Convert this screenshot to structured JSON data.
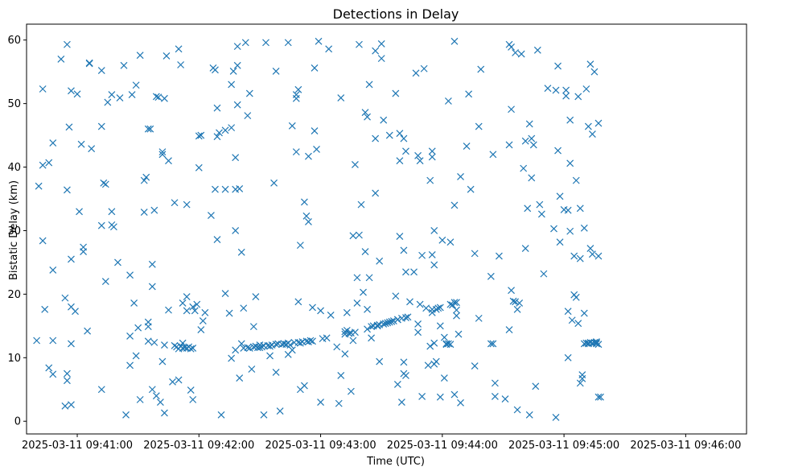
{
  "chart_data": {
    "type": "scatter",
    "title": "Detections in Delay",
    "xlabel": "Time (UTC)",
    "ylabel": "Bistatic Delay (km)",
    "marker": "x",
    "color": "#1f77b4",
    "xlim": [
      -25,
      330
    ],
    "ylim": [
      -2,
      62.5
    ],
    "x_unit": "seconds after 2025-03-11 09:41:00",
    "xticks": [
      {
        "value": 0,
        "label": "2025-03-11 09:41:00"
      },
      {
        "value": 60,
        "label": "2025-03-11 09:42:00"
      },
      {
        "value": 120,
        "label": "2025-03-11 09:43:00"
      },
      {
        "value": 180,
        "label": "2025-03-11 09:44:00"
      },
      {
        "value": 240,
        "label": "2025-03-11 09:45:00"
      },
      {
        "value": 300,
        "label": "2025-03-11 09:46:00"
      }
    ],
    "yticks": [
      {
        "value": 0,
        "label": "0"
      },
      {
        "value": 10,
        "label": "10"
      },
      {
        "value": 20,
        "label": "20"
      },
      {
        "value": 30,
        "label": "30"
      },
      {
        "value": 40,
        "label": "40"
      },
      {
        "value": 50,
        "label": "50"
      },
      {
        "value": 60,
        "label": "60"
      }
    ],
    "points": [
      [
        -20,
        12.7
      ],
      [
        -19,
        37.0
      ],
      [
        -17,
        52.3
      ],
      [
        -17,
        40.3
      ],
      [
        -16,
        17.6
      ],
      [
        -17,
        28.4
      ],
      [
        -14,
        40.7
      ],
      [
        -14,
        8.4
      ],
      [
        -12,
        43.8
      ],
      [
        -12,
        23.8
      ],
      [
        -12,
        12.7
      ],
      [
        -12,
        7.4
      ],
      [
        -8,
        57.0
      ],
      [
        -5,
        59.3
      ],
      [
        -5,
        36.4
      ],
      [
        -6,
        19.4
      ],
      [
        -6,
        2.4
      ],
      [
        -5,
        7.5
      ],
      [
        -5,
        6.4
      ],
      [
        -4,
        46.3
      ],
      [
        -3,
        52.0
      ],
      [
        -3,
        25.5
      ],
      [
        -3,
        18.0
      ],
      [
        -3,
        12.2
      ],
      [
        -3,
        2.6
      ],
      [
        -1,
        17.3
      ],
      [
        0,
        51.5
      ],
      [
        1,
        33.0
      ],
      [
        2,
        43.6
      ],
      [
        3,
        27.4
      ],
      [
        3,
        26.7
      ],
      [
        5,
        14.2
      ],
      [
        6,
        56.4
      ],
      [
        6,
        56.3
      ],
      [
        7,
        42.9
      ],
      [
        12,
        55.2
      ],
      [
        12,
        46.4
      ],
      [
        12,
        30.8
      ],
      [
        12,
        5.0
      ],
      [
        13,
        37.5
      ],
      [
        14,
        37.3
      ],
      [
        14,
        22.0
      ],
      [
        15,
        50.2
      ],
      [
        17,
        51.4
      ],
      [
        17,
        33.0
      ],
      [
        17,
        30.9
      ],
      [
        18,
        30.6
      ],
      [
        20,
        25.0
      ],
      [
        21,
        50.9
      ],
      [
        23,
        56.0
      ],
      [
        24,
        1.0
      ],
      [
        26,
        8.8
      ],
      [
        26,
        13.4
      ],
      [
        26,
        23.0
      ],
      [
        27,
        51.4
      ],
      [
        29,
        52.9
      ],
      [
        28,
        18.6
      ],
      [
        29,
        10.3
      ],
      [
        30,
        14.7
      ],
      [
        31,
        57.6
      ],
      [
        31,
        3.4
      ],
      [
        33,
        37.9
      ],
      [
        33,
        32.9
      ],
      [
        34,
        38.4
      ],
      [
        35,
        14.9
      ],
      [
        35,
        15.6
      ],
      [
        35,
        12.6
      ],
      [
        35,
        46.0
      ],
      [
        36,
        46.0
      ],
      [
        37,
        24.7
      ],
      [
        37,
        21.2
      ],
      [
        37,
        5.0
      ],
      [
        38,
        33.2
      ],
      [
        38,
        12.4
      ],
      [
        39,
        51.1
      ],
      [
        39,
        4.0
      ],
      [
        40,
        51.0
      ],
      [
        41,
        3.0
      ],
      [
        42,
        42.4
      ],
      [
        42,
        42.0
      ],
      [
        42,
        9.4
      ],
      [
        43,
        12.0
      ],
      [
        43,
        50.8
      ],
      [
        44,
        57.5
      ],
      [
        43,
        1.3
      ],
      [
        45,
        41.0
      ],
      [
        45,
        17.5
      ],
      [
        47,
        6.2
      ],
      [
        48,
        34.4
      ],
      [
        48,
        11.9
      ],
      [
        49,
        11.7
      ],
      [
        50,
        11.4
      ],
      [
        50,
        6.5
      ],
      [
        50,
        58.6
      ],
      [
        51,
        56.1
      ],
      [
        51,
        11.8
      ],
      [
        52,
        12.3
      ],
      [
        52,
        11.5
      ],
      [
        52,
        18.6
      ],
      [
        53,
        11.6
      ],
      [
        54,
        19.6
      ],
      [
        54,
        17.4
      ],
      [
        54,
        11.5
      ],
      [
        54,
        34.1
      ],
      [
        55,
        11.7
      ],
      [
        56,
        11.4
      ],
      [
        56,
        4.9
      ],
      [
        57,
        18.0
      ],
      [
        57,
        11.5
      ],
      [
        57,
        3.4
      ],
      [
        58,
        17.4
      ],
      [
        59,
        18.4
      ],
      [
        60,
        44.9
      ],
      [
        60,
        39.9
      ],
      [
        61,
        14.4
      ],
      [
        61,
        45.0
      ],
      [
        62,
        15.8
      ],
      [
        63,
        17.1
      ],
      [
        66,
        32.4
      ],
      [
        67,
        55.6
      ],
      [
        68,
        55.3
      ],
      [
        69,
        49.3
      ],
      [
        68,
        36.5
      ],
      [
        69,
        28.6
      ],
      [
        69,
        44.8
      ],
      [
        70,
        45.4
      ],
      [
        71,
        1.0
      ],
      [
        73,
        36.5
      ],
      [
        73,
        45.8
      ],
      [
        73,
        20.1
      ],
      [
        75,
        17.0
      ],
      [
        76,
        9.9
      ],
      [
        76,
        53.0
      ],
      [
        77,
        55.1
      ],
      [
        76,
        46.2
      ],
      [
        78,
        41.5
      ],
      [
        78,
        30.0
      ],
      [
        78,
        11.2
      ],
      [
        78,
        36.5
      ],
      [
        79,
        59.0
      ],
      [
        79,
        56.0
      ],
      [
        79,
        49.8
      ],
      [
        80,
        6.8
      ],
      [
        80,
        36.6
      ],
      [
        81,
        26.6
      ],
      [
        81,
        12.2
      ],
      [
        82,
        11.5
      ],
      [
        82,
        17.8
      ],
      [
        83,
        59.6
      ],
      [
        84,
        48.1
      ],
      [
        84,
        11.6
      ],
      [
        85,
        51.6
      ],
      [
        85,
        11.5
      ],
      [
        86,
        8.2
      ],
      [
        87,
        11.7
      ],
      [
        87,
        14.9
      ],
      [
        88,
        19.6
      ],
      [
        88,
        11.8
      ],
      [
        89,
        11.6
      ],
      [
        90,
        11.6
      ],
      [
        90,
        12.0
      ],
      [
        91,
        11.7
      ],
      [
        92,
        11.9
      ],
      [
        92,
        1.0
      ],
      [
        93,
        59.6
      ],
      [
        94,
        11.9
      ],
      [
        95,
        11.8
      ],
      [
        95,
        10.3
      ],
      [
        96,
        12.0
      ],
      [
        97,
        37.5
      ],
      [
        98,
        7.7
      ],
      [
        98,
        55.1
      ],
      [
        98,
        12.1
      ],
      [
        99,
        12.2
      ],
      [
        100,
        1.6
      ],
      [
        101,
        12.1
      ],
      [
        102,
        12.2
      ],
      [
        103,
        12.1
      ],
      [
        104,
        59.6
      ],
      [
        104,
        10.5
      ],
      [
        104,
        12.3
      ],
      [
        105,
        12.0
      ],
      [
        106,
        11.2
      ],
      [
        106,
        46.5
      ],
      [
        107,
        12.4
      ],
      [
        108,
        51.4
      ],
      [
        108,
        50.8
      ],
      [
        109,
        52.2
      ],
      [
        108,
        42.4
      ],
      [
        109,
        18.8
      ],
      [
        109,
        12.4
      ],
      [
        110,
        12.3
      ],
      [
        110,
        5.0
      ],
      [
        110,
        27.7
      ],
      [
        111,
        12.5
      ],
      [
        112,
        34.5
      ],
      [
        112,
        5.6
      ],
      [
        113,
        12.6
      ],
      [
        113,
        32.3
      ],
      [
        114,
        41.7
      ],
      [
        114,
        31.4
      ],
      [
        114,
        12.5
      ],
      [
        115,
        12.7
      ],
      [
        116,
        12.6
      ],
      [
        116,
        17.9
      ],
      [
        117,
        45.7
      ],
      [
        117,
        55.6
      ],
      [
        118,
        42.8
      ],
      [
        119,
        59.8
      ],
      [
        120,
        3.0
      ],
      [
        120,
        17.4
      ],
      [
        121,
        13.0
      ],
      [
        123,
        13.1
      ],
      [
        124,
        58.6
      ],
      [
        125,
        16.7
      ],
      [
        128,
        11.7
      ],
      [
        129,
        2.8
      ],
      [
        130,
        7.2
      ],
      [
        130,
        50.9
      ],
      [
        132,
        13.7
      ],
      [
        132,
        10.6
      ],
      [
        132,
        14.1
      ],
      [
        133,
        17.1
      ],
      [
        133,
        14.3
      ],
      [
        134,
        13.8
      ],
      [
        135,
        13.9
      ],
      [
        135,
        4.7
      ],
      [
        136,
        12.7
      ],
      [
        136,
        29.2
      ],
      [
        137,
        40.4
      ],
      [
        137,
        14.0
      ],
      [
        138,
        18.6
      ],
      [
        138,
        22.6
      ],
      [
        139,
        29.3
      ],
      [
        139,
        59.3
      ],
      [
        140,
        34.1
      ],
      [
        141,
        20.3
      ],
      [
        142,
        26.7
      ],
      [
        142,
        48.6
      ],
      [
        143,
        47.9
      ],
      [
        143,
        17.6
      ],
      [
        143,
        14.5
      ],
      [
        144,
        53.0
      ],
      [
        144,
        22.6
      ],
      [
        145,
        13.1
      ],
      [
        145,
        14.9
      ],
      [
        146,
        15.0
      ],
      [
        147,
        35.9
      ],
      [
        147,
        44.5
      ],
      [
        147,
        58.3
      ],
      [
        148,
        15.0
      ],
      [
        148,
        15.1
      ],
      [
        149,
        25.2
      ],
      [
        149,
        9.4
      ],
      [
        149,
        15.2
      ],
      [
        150,
        59.4
      ],
      [
        150,
        57.1
      ],
      [
        151,
        15.3
      ],
      [
        151,
        47.4
      ],
      [
        152,
        15.4
      ],
      [
        153,
        15.5
      ],
      [
        154,
        45.0
      ],
      [
        154,
        15.6
      ],
      [
        155,
        15.7
      ],
      [
        156,
        15.8
      ],
      [
        157,
        19.7
      ],
      [
        157,
        51.6
      ],
      [
        158,
        16.0
      ],
      [
        158,
        5.8
      ],
      [
        158,
        16.0
      ],
      [
        159,
        41.0
      ],
      [
        159,
        45.3
      ],
      [
        159,
        29.1
      ],
      [
        160,
        16.2
      ],
      [
        160,
        3.0
      ],
      [
        161,
        9.3
      ],
      [
        161,
        44.5
      ],
      [
        161,
        26.9
      ],
      [
        161,
        7.5
      ],
      [
        162,
        16.3
      ],
      [
        162,
        7.2
      ],
      [
        162,
        42.5
      ],
      [
        162,
        23.5
      ],
      [
        163,
        16.4
      ],
      [
        164,
        18.8
      ],
      [
        166,
        23.5
      ],
      [
        167,
        54.8
      ],
      [
        168,
        15.3
      ],
      [
        168,
        41.8
      ],
      [
        169,
        41.0
      ],
      [
        168,
        14.0
      ],
      [
        169,
        18.4
      ],
      [
        170,
        3.9
      ],
      [
        170,
        26.1
      ],
      [
        171,
        55.5
      ],
      [
        172,
        17.8
      ],
      [
        173,
        8.8
      ],
      [
        174,
        37.9
      ],
      [
        174,
        11.8
      ],
      [
        175,
        17.1
      ],
      [
        175,
        42.5
      ],
      [
        175,
        41.6
      ],
      [
        175,
        26.2
      ],
      [
        175,
        17.6
      ],
      [
        176,
        30.0
      ],
      [
        176,
        24.6
      ],
      [
        176,
        12.3
      ],
      [
        176,
        9.0
      ],
      [
        177,
        17.6
      ],
      [
        177,
        9.4
      ],
      [
        178,
        17.8
      ],
      [
        179,
        17.9
      ],
      [
        179,
        15.0
      ],
      [
        179,
        3.8
      ],
      [
        180,
        28.5
      ],
      [
        181,
        6.8
      ],
      [
        181,
        13.2
      ],
      [
        182,
        12.2
      ],
      [
        182,
        12.1
      ],
      [
        183,
        50.4
      ],
      [
        183,
        12.2
      ],
      [
        184,
        12.1
      ],
      [
        184,
        28.2
      ],
      [
        184,
        18.4
      ],
      [
        185,
        18.3
      ],
      [
        186,
        34.0
      ],
      [
        186,
        59.8
      ],
      [
        186,
        4.2
      ],
      [
        186,
        18.7
      ],
      [
        187,
        17.5
      ],
      [
        187,
        18.7
      ],
      [
        187,
        16.6
      ],
      [
        188,
        13.7
      ],
      [
        189,
        2.9
      ],
      [
        189,
        38.5
      ],
      [
        192,
        43.3
      ],
      [
        193,
        51.5
      ],
      [
        194,
        36.5
      ],
      [
        196,
        8.7
      ],
      [
        196,
        26.4
      ],
      [
        198,
        16.2
      ],
      [
        198,
        46.4
      ],
      [
        199,
        55.4
      ],
      [
        204,
        12.2
      ],
      [
        204,
        22.8
      ],
      [
        205,
        42.0
      ],
      [
        205,
        12.2
      ],
      [
        206,
        3.9
      ],
      [
        206,
        6.0
      ],
      [
        208,
        26.0
      ],
      [
        211,
        3.5
      ],
      [
        213,
        59.3
      ],
      [
        213,
        43.5
      ],
      [
        213,
        14.4
      ],
      [
        214,
        58.9
      ],
      [
        214,
        49.1
      ],
      [
        214,
        20.6
      ],
      [
        215,
        18.9
      ],
      [
        216,
        18.8
      ],
      [
        216,
        58.0
      ],
      [
        217,
        17.6
      ],
      [
        217,
        1.8
      ],
      [
        218,
        18.6
      ],
      [
        219,
        57.8
      ],
      [
        220,
        39.8
      ],
      [
        221,
        27.2
      ],
      [
        221,
        44.1
      ],
      [
        222,
        33.5
      ],
      [
        223,
        46.8
      ],
      [
        223,
        1.0
      ],
      [
        224,
        44.5
      ],
      [
        224,
        38.3
      ],
      [
        225,
        43.5
      ],
      [
        226,
        5.5
      ],
      [
        227,
        58.4
      ],
      [
        228,
        34.1
      ],
      [
        229,
        32.6
      ],
      [
        230,
        23.2
      ],
      [
        232,
        52.4
      ],
      [
        235,
        30.3
      ],
      [
        236,
        0.6
      ],
      [
        236,
        52.1
      ],
      [
        237,
        42.6
      ],
      [
        237,
        55.9
      ],
      [
        238,
        28.2
      ],
      [
        238,
        35.4
      ],
      [
        240,
        33.3
      ],
      [
        241,
        52.1
      ],
      [
        241,
        51.2
      ],
      [
        242,
        33.2
      ],
      [
        242,
        10.0
      ],
      [
        242,
        17.3
      ],
      [
        243,
        29.9
      ],
      [
        243,
        47.4
      ],
      [
        243,
        40.6
      ],
      [
        244,
        15.9
      ],
      [
        245,
        26.0
      ],
      [
        245,
        19.9
      ],
      [
        246,
        19.5
      ],
      [
        246,
        37.9
      ],
      [
        247,
        51.1
      ],
      [
        247,
        15.4
      ],
      [
        248,
        25.6
      ],
      [
        248,
        33.5
      ],
      [
        248,
        6.0
      ],
      [
        249,
        6.7
      ],
      [
        249,
        7.3
      ],
      [
        250,
        30.4
      ],
      [
        250,
        12.2
      ],
      [
        250,
        17.0
      ],
      [
        251,
        12.3
      ],
      [
        251,
        52.3
      ],
      [
        252,
        12.2
      ],
      [
        252,
        46.4
      ],
      [
        252,
        12.3
      ],
      [
        253,
        56.2
      ],
      [
        253,
        27.2
      ],
      [
        253,
        12.4
      ],
      [
        254,
        26.3
      ],
      [
        254,
        45.2
      ],
      [
        254,
        12.3
      ],
      [
        255,
        55.0
      ],
      [
        255,
        12.4
      ],
      [
        256,
        12.2
      ],
      [
        256,
        12.4
      ],
      [
        256,
        12.5
      ],
      [
        257,
        46.9
      ],
      [
        257,
        26.0
      ],
      [
        257,
        3.8
      ],
      [
        258,
        3.8
      ],
      [
        257,
        12.1
      ]
    ]
  }
}
